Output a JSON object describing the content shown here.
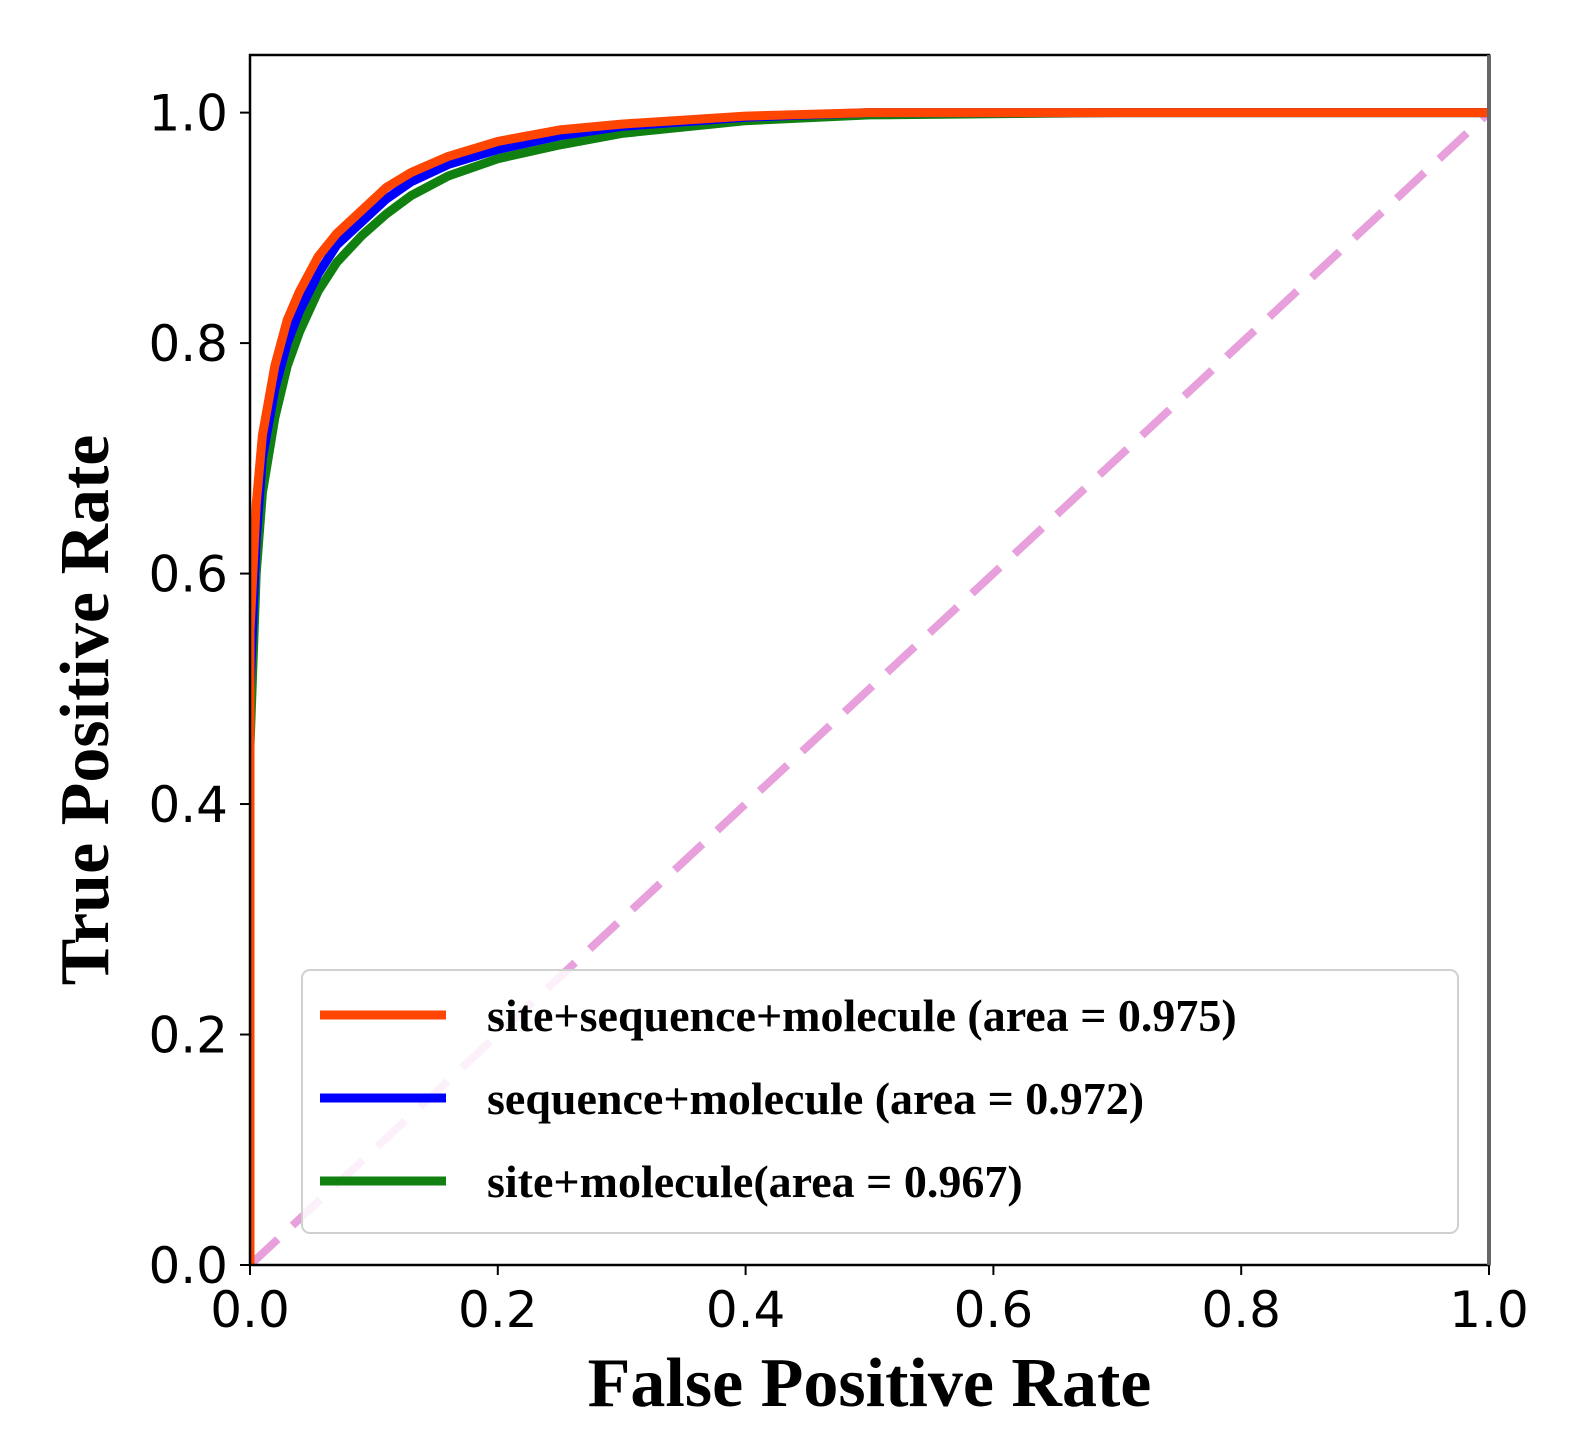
{
  "chart_data": {
    "type": "line",
    "title": "",
    "xlabel": "False Positive Rate",
    "ylabel": "True Positive Rate",
    "xlim": [
      0.0,
      1.0
    ],
    "ylim": [
      0.0,
      1.05
    ],
    "xticks": [
      "0.0",
      "0.2",
      "0.4",
      "0.6",
      "0.8",
      "1.0"
    ],
    "yticks": [
      "0.0",
      "0.2",
      "0.4",
      "0.6",
      "0.8",
      "1.0"
    ],
    "xtick_values": [
      0.0,
      0.2,
      0.4,
      0.6,
      0.8,
      1.0
    ],
    "ytick_values": [
      0.0,
      0.2,
      0.4,
      0.6,
      0.8,
      1.0
    ],
    "legend_position": "bottom-right",
    "series": [
      {
        "name": "site+sequence+molecule (area = 0.975)",
        "color": "#ff4500",
        "x": [
          0.0,
          0.0,
          0.005,
          0.01,
          0.02,
          0.03,
          0.04,
          0.055,
          0.07,
          0.09,
          0.11,
          0.13,
          0.16,
          0.2,
          0.25,
          0.3,
          0.4,
          0.5,
          0.7,
          1.0
        ],
        "y": [
          0.0,
          0.55,
          0.66,
          0.72,
          0.78,
          0.82,
          0.845,
          0.875,
          0.895,
          0.915,
          0.935,
          0.948,
          0.962,
          0.975,
          0.985,
          0.99,
          0.997,
          1.0,
          1.0,
          1.0
        ]
      },
      {
        "name": "sequence+molecule (area = 0.972)",
        "color": "#0000ff",
        "x": [
          0.0,
          0.0,
          0.005,
          0.01,
          0.02,
          0.03,
          0.04,
          0.055,
          0.07,
          0.09,
          0.11,
          0.13,
          0.16,
          0.2,
          0.25,
          0.3,
          0.4,
          0.5,
          0.7,
          1.0
        ],
        "y": [
          0.0,
          0.5,
          0.63,
          0.7,
          0.76,
          0.8,
          0.828,
          0.86,
          0.885,
          0.905,
          0.925,
          0.94,
          0.955,
          0.968,
          0.98,
          0.988,
          0.996,
          1.0,
          1.0,
          1.0
        ]
      },
      {
        "name": "site+molecule(area = 0.967)",
        "color": "#108010",
        "x": [
          0.0,
          0.0,
          0.005,
          0.01,
          0.02,
          0.03,
          0.04,
          0.055,
          0.07,
          0.09,
          0.11,
          0.13,
          0.16,
          0.2,
          0.25,
          0.3,
          0.4,
          0.5,
          0.7,
          1.0
        ],
        "y": [
          0.0,
          0.45,
          0.6,
          0.67,
          0.735,
          0.78,
          0.81,
          0.845,
          0.87,
          0.893,
          0.912,
          0.928,
          0.945,
          0.96,
          0.972,
          0.982,
          0.993,
          0.998,
          1.0,
          1.0
        ]
      },
      {
        "name": "chance",
        "color": "#e8a0dc",
        "dashed": true,
        "in_legend": false,
        "x": [
          0.0,
          1.0
        ],
        "y": [
          0.0,
          1.0
        ]
      }
    ]
  }
}
